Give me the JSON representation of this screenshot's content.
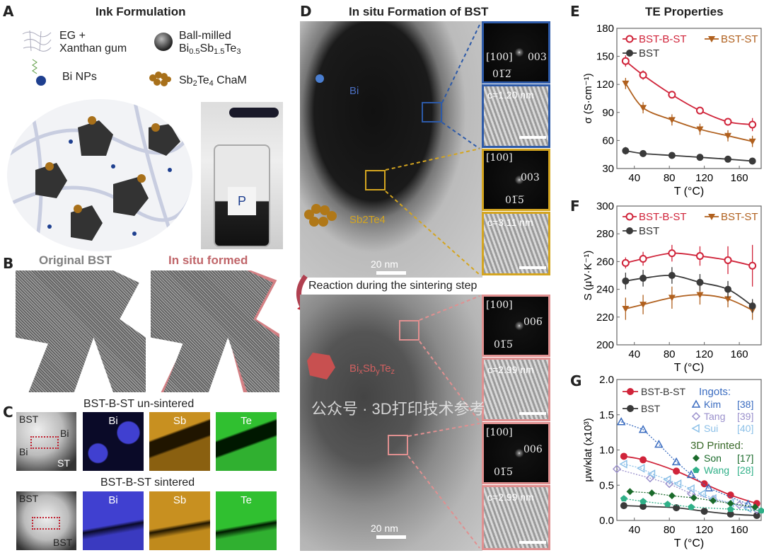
{
  "panels": {
    "a": {
      "label": "A",
      "title": "Ink Formulation",
      "eg": "EG +",
      "xanthan": "Xanthan gum",
      "ballmilled": "Ball-milled",
      "bst_formula": "Bi0.5Sb1.5Te3",
      "bi_nps": "Bi NPs",
      "sbte": "Sb2Te4 ChaM",
      "jar_label": "P"
    },
    "b": {
      "label": "B",
      "left_title": "Original BST",
      "right_title": "In situ formed",
      "left_color": "#808080",
      "right_color": "#c0666a"
    },
    "c": {
      "label": "C",
      "row1_title": "BST-B-ST un-sintered",
      "row2_title": "BST-B-ST sintered",
      "row1_haadf": [
        "BST",
        "Bi",
        "Bi",
        "ST"
      ],
      "row2_haadf": [
        "BST",
        "BST"
      ],
      "maps": [
        "Bi",
        "Sb",
        "Te"
      ],
      "map_colors": [
        "#3a3acc",
        "#c89020",
        "#30c030"
      ]
    },
    "d": {
      "label": "D",
      "title": "In situ Formation of BST",
      "bi": "Bi",
      "sbte": "Sb2Te4",
      "bisbte": "BixSbyTez",
      "scale": "20 nm",
      "reaction": "Reaction during the sintering step",
      "insets": [
        {
          "zone": "[100]",
          "spots": [
            "003",
            "01̅2̅"
          ],
          "c": "c=1.20 nm",
          "color": "#2d5aa8"
        },
        {
          "zone": "[100]",
          "spots": [
            "003",
            "01̅5̅"
          ],
          "c": "c=3.11 nm",
          "color": "#d4a520"
        },
        {
          "zone": "[100]",
          "spots": [
            "006̅",
            "01̅5̅"
          ],
          "c": "c=2.99 nm",
          "color": "#e09090"
        },
        {
          "zone": "[100]",
          "spots": [
            "006",
            "01̅5̅"
          ],
          "c": "c=2.99 nm",
          "color": "#e09090"
        }
      ]
    }
  },
  "watermark": "公众号 · 3D打印技术参考",
  "chart_data": [
    {
      "panel": "E",
      "title": "TE Properties",
      "type": "line",
      "xlabel": "T (°C)",
      "ylabel": "σ (S·cm⁻¹)",
      "xlim": [
        20,
        185
      ],
      "ylim": [
        30,
        180
      ],
      "xticks": [
        40,
        80,
        120,
        160
      ],
      "yticks": [
        30,
        60,
        90,
        120,
        150,
        180
      ],
      "legend": "top-left",
      "series": [
        {
          "name": "BST-B-ST",
          "color": "#d0243a",
          "marker": "open-circle",
          "x": [
            30,
            50,
            83,
            115,
            147,
            175
          ],
          "y": [
            145,
            130,
            109,
            92,
            80,
            77
          ],
          "err": [
            6,
            5,
            4,
            4,
            4,
            7
          ]
        },
        {
          "name": "BST-ST",
          "color": "#b0601e",
          "marker": "down-triangle",
          "x": [
            30,
            50,
            83,
            115,
            147,
            175
          ],
          "y": [
            121,
            95,
            82,
            72,
            65,
            59
          ],
          "err": [
            6,
            6,
            6,
            6,
            6,
            6
          ]
        },
        {
          "name": "BST",
          "color": "#3a3a3a",
          "marker": "circle",
          "x": [
            30,
            50,
            83,
            115,
            147,
            175
          ],
          "y": [
            49,
            46,
            44,
            42,
            40,
            38
          ],
          "err": [
            4,
            3,
            2,
            2,
            2,
            2
          ]
        }
      ]
    },
    {
      "panel": "F",
      "type": "line",
      "xlabel": "T (°C)",
      "ylabel": "S (μV·K⁻¹)",
      "xlim": [
        20,
        185
      ],
      "ylim": [
        200,
        300
      ],
      "xticks": [
        40,
        80,
        120,
        160
      ],
      "yticks": [
        200,
        220,
        240,
        260,
        280,
        300
      ],
      "legend": "top-left",
      "series": [
        {
          "name": "BST-B-ST",
          "color": "#d0243a",
          "marker": "open-circle",
          "x": [
            30,
            50,
            83,
            115,
            147,
            175
          ],
          "y": [
            259,
            262,
            266,
            264,
            261,
            257
          ],
          "err": [
            4,
            5,
            6,
            7,
            10,
            15
          ]
        },
        {
          "name": "BST-ST",
          "color": "#b0601e",
          "marker": "down-triangle",
          "x": [
            30,
            50,
            83,
            115,
            147,
            175
          ],
          "y": [
            226,
            229,
            234,
            236,
            233,
            225
          ],
          "err": [
            8,
            7,
            8,
            7,
            6,
            7
          ]
        },
        {
          "name": "BST",
          "color": "#3a3a3a",
          "marker": "circle",
          "x": [
            30,
            50,
            83,
            115,
            147,
            175
          ],
          "y": [
            246,
            248,
            250,
            245,
            240,
            228
          ],
          "err": [
            6,
            6,
            6,
            6,
            6,
            5
          ]
        }
      ]
    },
    {
      "panel": "G",
      "type": "line",
      "xlabel": "T (°C)",
      "ylabel": "μw/κlat (x10³)",
      "xlim": [
        20,
        185
      ],
      "ylim": [
        0,
        2.0
      ],
      "xticks": [
        40,
        80,
        120,
        160
      ],
      "yticks": [
        0.0,
        0.5,
        1.0,
        1.5,
        2.0
      ],
      "legend": "top",
      "group_labels": [
        "Ingots:",
        "3D Printed:"
      ],
      "series": [
        {
          "name": "BST-B-ST",
          "color": "#d0243a",
          "marker": "circle",
          "line": "solid",
          "x": [
            28,
            50,
            88,
            120,
            150,
            180
          ],
          "y": [
            0.91,
            0.86,
            0.7,
            0.52,
            0.36,
            0.24
          ]
        },
        {
          "name": "BST",
          "color": "#3a3a3a",
          "marker": "circle",
          "line": "solid",
          "x": [
            28,
            50,
            88,
            120,
            150,
            180
          ],
          "y": [
            0.21,
            0.2,
            0.18,
            0.13,
            0.09,
            0.07
          ]
        },
        {
          "name": "Kim",
          "ref": "[38]",
          "color": "#3a6cc0",
          "marker": "open-triangle",
          "line": "dotted",
          "x": [
            25,
            50,
            68,
            88,
            105,
            125,
            170
          ],
          "y": [
            1.4,
            1.29,
            1.08,
            0.83,
            0.65,
            0.46,
            0.23
          ]
        },
        {
          "name": "Tang",
          "ref": "[39]",
          "color": "#9a90cc",
          "marker": "open-diamond",
          "line": "dotted",
          "x": [
            20,
            58,
            80,
            105,
            130,
            160,
            180
          ],
          "y": [
            0.73,
            0.6,
            0.52,
            0.38,
            0.3,
            0.22,
            0.15
          ]
        },
        {
          "name": "Sui",
          "ref": "[40]",
          "color": "#8cc0e8",
          "marker": "open-left-triangle",
          "line": "dotted",
          "x": [
            28,
            48,
            60,
            78,
            90,
            105,
            118,
            130,
            150,
            170
          ],
          "y": [
            0.8,
            0.74,
            0.66,
            0.58,
            0.52,
            0.45,
            0.38,
            0.31,
            0.25,
            0.17
          ]
        },
        {
          "name": "Son",
          "ref": "[17]",
          "color": "#1a6a2a",
          "marker": "diamond",
          "line": "dotted",
          "x": [
            35,
            60,
            83,
            108,
            130,
            150,
            178
          ],
          "y": [
            0.41,
            0.39,
            0.35,
            0.32,
            0.28,
            0.24,
            0.19
          ]
        },
        {
          "name": "Wang",
          "ref": "[28]",
          "color": "#30b088",
          "marker": "pentagon",
          "line": "dotted",
          "x": [
            28,
            50,
            78,
            105,
            150,
            185
          ],
          "y": [
            0.31,
            0.27,
            0.23,
            0.19,
            0.16,
            0.14
          ]
        }
      ]
    }
  ]
}
